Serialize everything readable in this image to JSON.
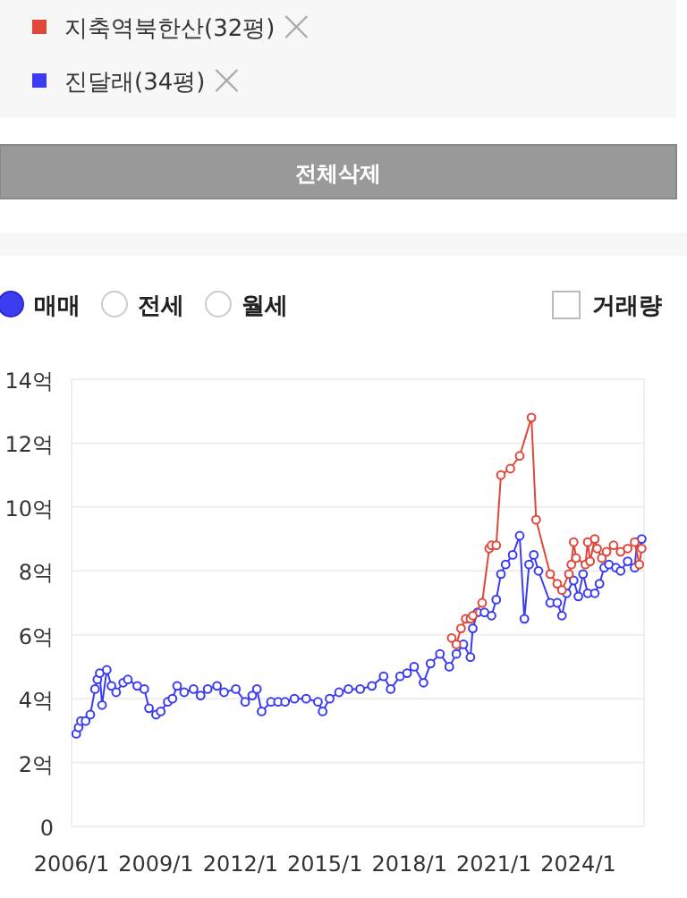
{
  "chart_data": {
    "type": "line",
    "series": [
      {
        "name": "지축역북한산(32평)",
        "color": "#e0463a",
        "x": [
          "2019-07",
          "2019-09",
          "2019-11",
          "2020-01",
          "2020-03",
          "2020-04",
          "2020-08",
          "2020-11",
          "2020-12",
          "2021-02",
          "2021-04",
          "2021-08",
          "2021-12",
          "2022-05",
          "2022-07",
          "2023-01",
          "2023-04",
          "2023-06",
          "2023-09",
          "2023-10",
          "2023-11",
          "2023-12",
          "2024-04",
          "2024-05",
          "2024-06",
          "2024-08",
          "2024-09",
          "2024-11",
          "2025-01",
          "2025-04",
          "2025-07",
          "2025-10",
          "2026-01",
          "2026-03",
          "2026-04"
        ],
        "values": [
          5.9,
          5.7,
          6.2,
          6.5,
          6.5,
          6.6,
          7.0,
          8.7,
          8.8,
          8.8,
          11.0,
          11.2,
          11.6,
          12.8,
          9.6,
          7.9,
          7.6,
          7.4,
          7.9,
          8.2,
          8.9,
          8.4,
          8.2,
          8.9,
          8.3,
          9.0,
          8.7,
          8.4,
          8.6,
          8.8,
          8.6,
          8.7,
          8.9,
          8.2,
          8.7
        ]
      },
      {
        "name": "진달래(34평)",
        "color": "#3b3bf0",
        "x": [
          "2006-03",
          "2006-04",
          "2006-05",
          "2006-07",
          "2006-09",
          "2006-11",
          "2006-12",
          "2007-01",
          "2007-02",
          "2007-04",
          "2007-06",
          "2007-08",
          "2007-11",
          "2008-01",
          "2008-05",
          "2008-08",
          "2008-10",
          "2009-01",
          "2009-03",
          "2009-06",
          "2009-08",
          "2009-10",
          "2010-01",
          "2010-05",
          "2010-08",
          "2010-11",
          "2011-03",
          "2011-06",
          "2011-11",
          "2012-03",
          "2012-06",
          "2012-08",
          "2012-10",
          "2013-02",
          "2013-05",
          "2013-08",
          "2013-12",
          "2014-05",
          "2014-10",
          "2014-12",
          "2015-03",
          "2015-07",
          "2015-11",
          "2016-04",
          "2016-09",
          "2017-02",
          "2017-05",
          "2017-09",
          "2017-12",
          "2018-03",
          "2018-07",
          "2018-10",
          "2019-02",
          "2019-06",
          "2019-09",
          "2019-12",
          "2020-03",
          "2020-04",
          "2020-06",
          "2020-09",
          "2020-12",
          "2021-02",
          "2021-04",
          "2021-06",
          "2021-09",
          "2021-12",
          "2022-02",
          "2022-04",
          "2022-06",
          "2022-08",
          "2023-01",
          "2023-04",
          "2023-06",
          "2023-08",
          "2023-11",
          "2024-01",
          "2024-03",
          "2024-05",
          "2024-08",
          "2024-10",
          "2024-12",
          "2025-02",
          "2025-05",
          "2025-07",
          "2025-10",
          "2026-01",
          "2026-02",
          "2026-04"
        ],
        "values": [
          2.9,
          3.1,
          3.3,
          3.3,
          3.5,
          4.3,
          4.6,
          4.8,
          3.8,
          4.9,
          4.4,
          4.2,
          4.5,
          4.6,
          4.4,
          4.3,
          3.7,
          3.5,
          3.6,
          3.9,
          4.0,
          4.4,
          4.2,
          4.3,
          4.1,
          4.3,
          4.4,
          4.2,
          4.3,
          3.9,
          4.1,
          4.3,
          3.6,
          3.9,
          3.9,
          3.9,
          4.0,
          4.0,
          3.9,
          3.6,
          4.0,
          4.2,
          4.3,
          4.3,
          4.4,
          4.7,
          4.3,
          4.7,
          4.8,
          5.0,
          4.5,
          5.1,
          5.4,
          5.0,
          5.4,
          5.7,
          5.3,
          6.2,
          6.7,
          6.7,
          6.6,
          7.1,
          7.9,
          8.2,
          8.5,
          9.1,
          6.5,
          8.2,
          8.5,
          8.0,
          7.0,
          7.0,
          6.6,
          7.3,
          7.7,
          7.2,
          7.9,
          7.3,
          7.3,
          7.6,
          8.1,
          8.2,
          8.1,
          8.0,
          8.3,
          8.1,
          8.9,
          9.0
        ]
      }
    ],
    "xlim": [
      "2006-01",
      "2026-05"
    ],
    "xticks": [
      {
        "value": "2006-01",
        "label": "2006/1"
      },
      {
        "value": "2009-01",
        "label": "2009/1"
      },
      {
        "value": "2012-01",
        "label": "2012/1"
      },
      {
        "value": "2015-01",
        "label": "2015/1"
      },
      {
        "value": "2018-01",
        "label": "2018/1"
      },
      {
        "value": "2021-01",
        "label": "2021/1"
      },
      {
        "value": "2024-01",
        "label": "2024/1"
      }
    ],
    "ylim": [
      0,
      14
    ],
    "yticks": [
      0,
      {
        "value": 2,
        "label": "2억"
      },
      {
        "value": 4,
        "label": "4억"
      },
      {
        "value": 6,
        "label": "6억"
      },
      {
        "value": 8,
        "label": "8억"
      },
      {
        "value": 10,
        "label": "10억"
      },
      {
        "value": 12,
        "label": "12억"
      },
      {
        "value": 14,
        "label": "14억"
      }
    ],
    "grid": "y",
    "marker": "circle",
    "line_style": "solid",
    "legend": "top",
    "annotations": [
      "전체삭제",
      "매매",
      "전세",
      "월세",
      "거래량"
    ]
  }
}
